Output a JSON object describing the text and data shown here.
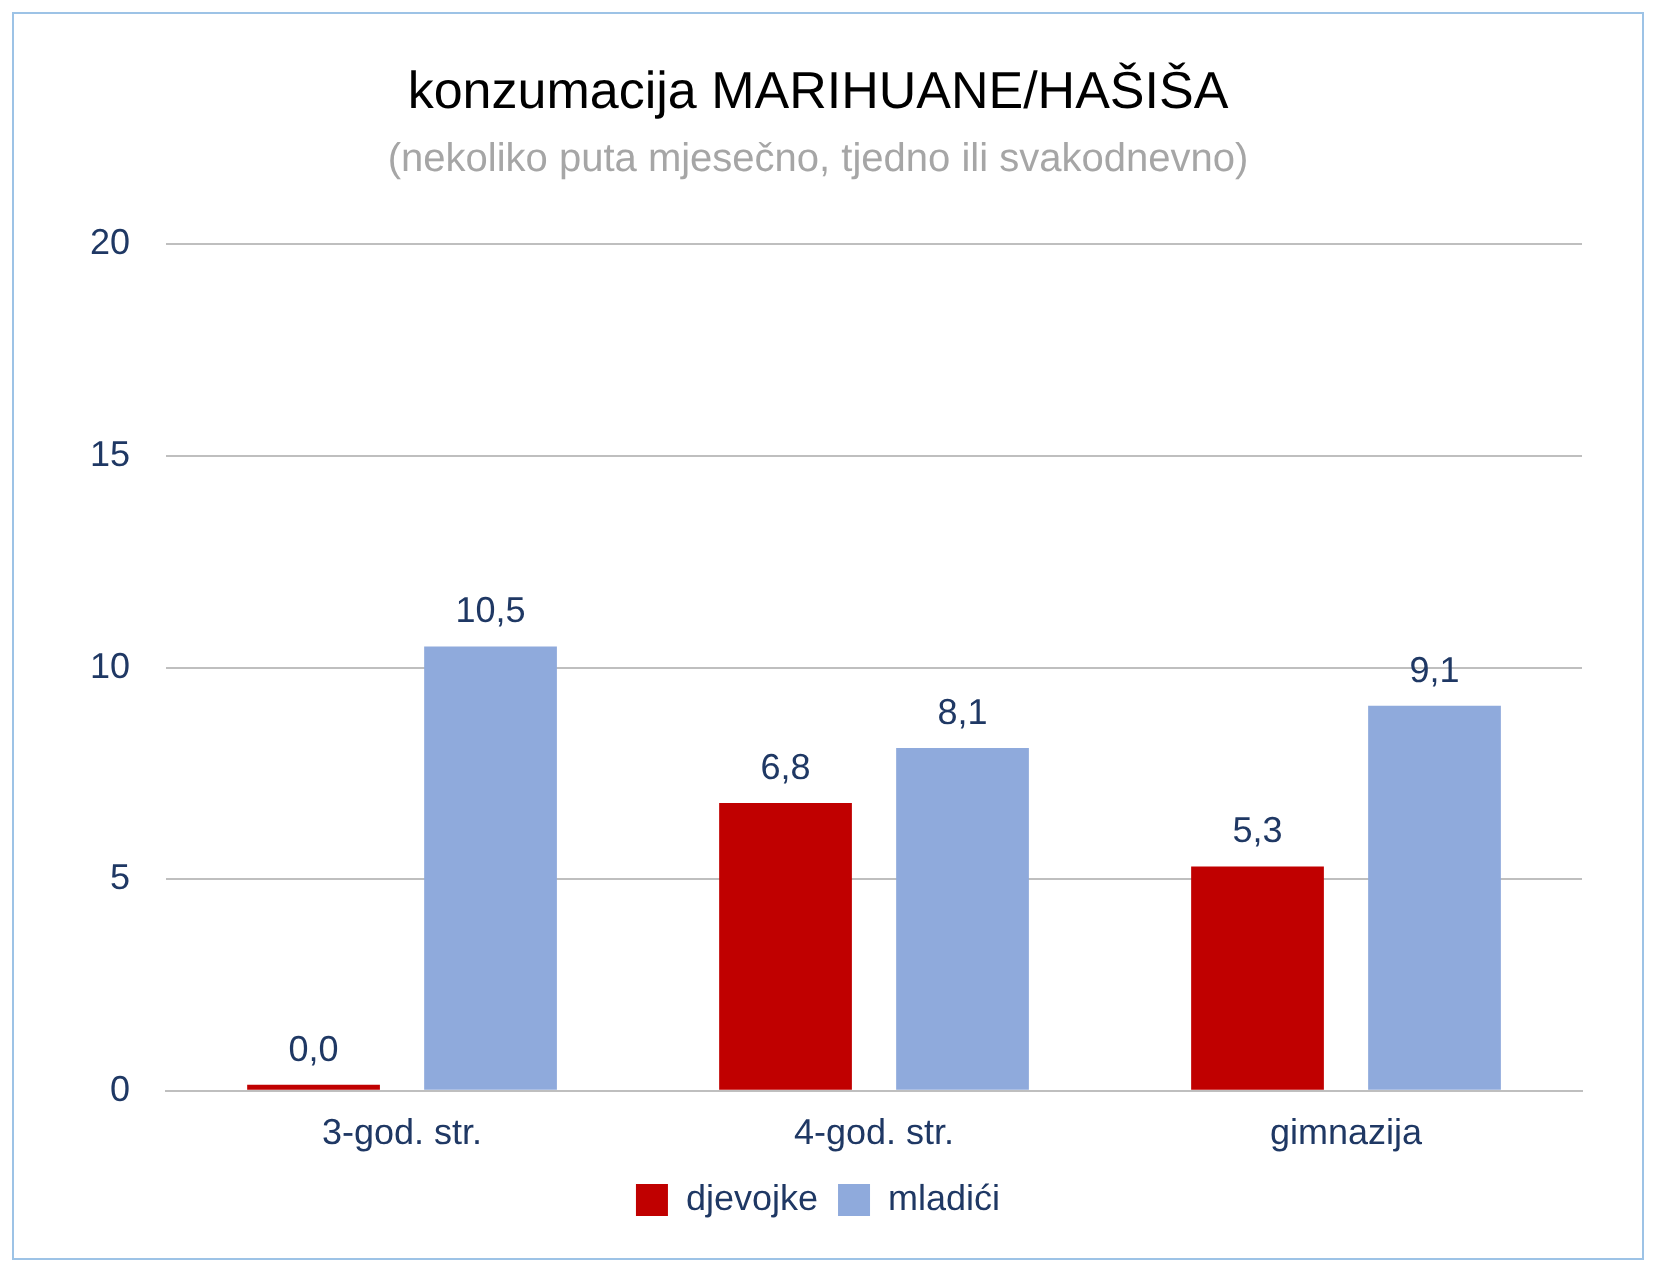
{
  "chart_data": {
    "type": "bar",
    "title": "konzumacija MARIHUANE/HAŠIŠA",
    "subtitle": "(nekoliko puta mjesečno, tjedno ili svakodnevno)",
    "categories": [
      "3-god. str.",
      "4-god. str.",
      "gimnazija"
    ],
    "series": [
      {
        "name": "djevojke",
        "color": "#c00000",
        "values": [
          0.0,
          6.8,
          5.3
        ],
        "value_labels": [
          "0,0",
          "6,8",
          "5,3"
        ]
      },
      {
        "name": "mladići",
        "color": "#8faadc",
        "values": [
          10.5,
          8.1,
          9.1
        ],
        "value_labels": [
          "10,5",
          "8,1",
          "9,1"
        ]
      }
    ],
    "ylim": [
      0,
      20
    ],
    "yticks": [
      0,
      5,
      10,
      15,
      20
    ],
    "grid": "y",
    "legend": "bottom"
  }
}
